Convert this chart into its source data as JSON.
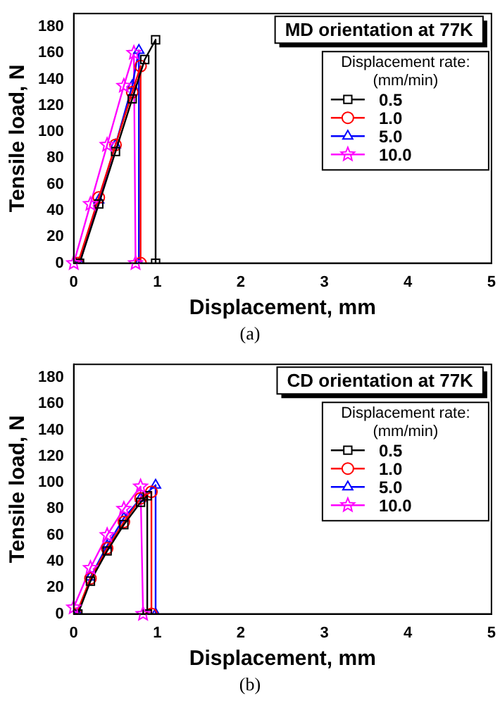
{
  "chart_data": [
    {
      "type": "line",
      "title": "MD orientation at 77K",
      "xlabel": "Displacement, mm",
      "ylabel": "Tensile load, N",
      "legend_title": "Displacement rate:\n(mm/min)",
      "annotations": [
        "(a)"
      ],
      "xlim": [
        0,
        5
      ],
      "ylim": [
        0,
        190
      ],
      "xticks": [
        0,
        1,
        2,
        3,
        4,
        5
      ],
      "yticks": [
        0,
        20,
        40,
        60,
        80,
        100,
        120,
        140,
        160,
        180
      ],
      "grid": false,
      "legend": "top right",
      "series": [
        {
          "name": "0.5",
          "color": "#000000",
          "marker": "square",
          "x": [
            0.07,
            0.3,
            0.5,
            0.7,
            0.85,
            0.98,
            0.98
          ],
          "values": [
            0,
            45,
            85,
            125,
            155,
            170,
            0
          ]
        },
        {
          "name": "1.0",
          "color": "#ff0000",
          "marker": "circle",
          "x": [
            0.05,
            0.3,
            0.5,
            0.7,
            0.8,
            0.8
          ],
          "values": [
            0,
            50,
            90,
            130,
            150,
            0
          ]
        },
        {
          "name": "5.0",
          "color": "#0000ff",
          "marker": "triangle",
          "x": [
            0.07,
            0.3,
            0.5,
            0.7,
            0.78,
            0.78
          ],
          "values": [
            0,
            48,
            90,
            135,
            162,
            0
          ]
        },
        {
          "name": "10.0",
          "color": "#ff00ff",
          "marker": "star",
          "x": [
            0,
            0.2,
            0.4,
            0.6,
            0.72,
            0.74
          ],
          "values": [
            0,
            45,
            90,
            135,
            160,
            0
          ]
        }
      ]
    },
    {
      "type": "line",
      "title": "CD orientation at 77K",
      "xlabel": "Displacement, mm",
      "ylabel": "Tensile load, N",
      "legend_title": "Displacement rate:\n(mm/min)",
      "annotations": [
        "(b)"
      ],
      "xlim": [
        0,
        5
      ],
      "ylim": [
        0,
        190
      ],
      "xticks": [
        0,
        1,
        2,
        3,
        4,
        5
      ],
      "yticks": [
        0,
        20,
        40,
        60,
        80,
        100,
        120,
        140,
        160,
        180
      ],
      "grid": false,
      "legend": "top right",
      "series": [
        {
          "name": "0.5",
          "color": "#000000",
          "marker": "square",
          "x": [
            0.05,
            0.2,
            0.4,
            0.6,
            0.8,
            0.88,
            0.88
          ],
          "values": [
            0,
            25,
            48,
            68,
            85,
            90,
            0
          ]
        },
        {
          "name": "1.0",
          "color": "#ff0000",
          "marker": "circle",
          "x": [
            0.03,
            0.2,
            0.4,
            0.6,
            0.8,
            0.93,
            0.93
          ],
          "values": [
            0,
            27,
            50,
            70,
            88,
            93,
            0
          ]
        },
        {
          "name": "5.0",
          "color": "#0000ff",
          "marker": "triangle",
          "x": [
            0.05,
            0.2,
            0.4,
            0.6,
            0.8,
            0.98,
            0.98
          ],
          "values": [
            0,
            28,
            52,
            73,
            88,
            98,
            0
          ]
        },
        {
          "name": "10.0",
          "color": "#ff00ff",
          "marker": "star",
          "x": [
            0,
            0.2,
            0.4,
            0.6,
            0.8,
            0.83
          ],
          "values": [
            5,
            35,
            60,
            80,
            97,
            0
          ]
        }
      ]
    }
  ]
}
